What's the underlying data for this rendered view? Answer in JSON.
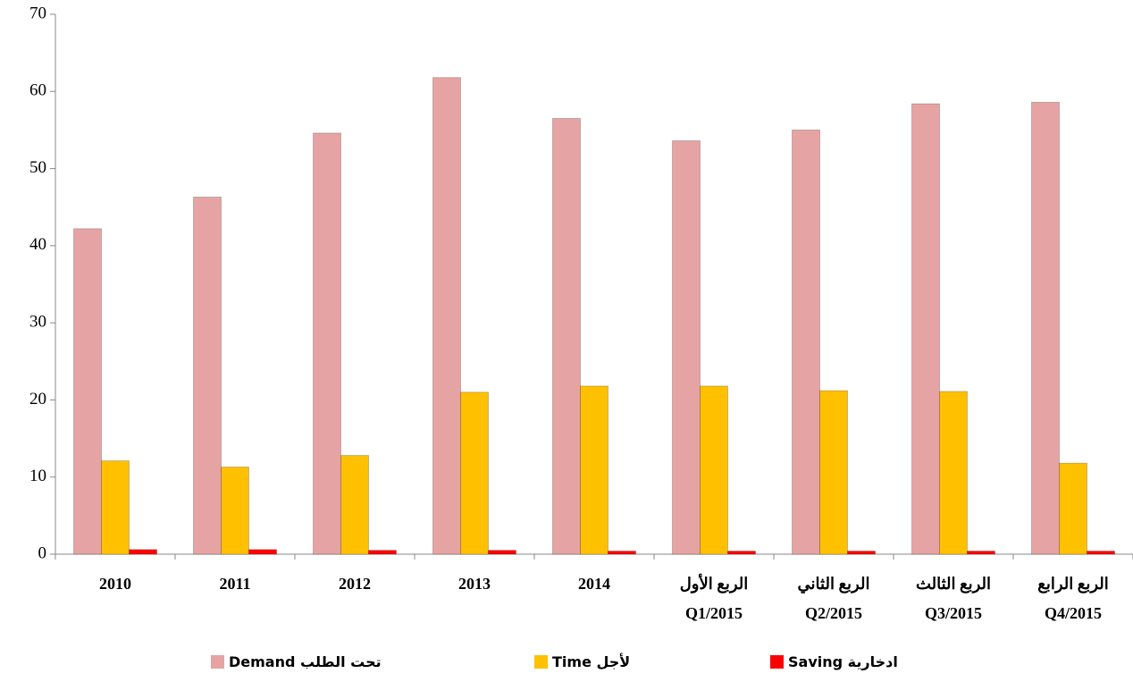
{
  "chart_data": {
    "type": "bar",
    "categories": [
      "2010",
      "2011",
      "2012",
      "2013",
      "2014",
      [
        "الربع الأول",
        "Q1/2015"
      ],
      [
        "الربع الثاني",
        "Q2/2015"
      ],
      [
        "الربع الثالث",
        "Q3/2015"
      ],
      [
        "الربع الرابع",
        "Q4/2015"
      ]
    ],
    "series": [
      {
        "name": "تحت الطلب  Demand",
        "color": "#e6a3a3",
        "values": [
          42.2,
          46.3,
          54.6,
          61.8,
          56.5,
          53.6,
          55.0,
          58.4,
          58.6
        ]
      },
      {
        "name": "لأجل  Time",
        "color": "#ffc000",
        "values": [
          12.1,
          11.3,
          12.8,
          21.0,
          21.8,
          21.8,
          21.2,
          21.1,
          11.8
        ]
      },
      {
        "name": "ادخارية Saving",
        "color": "#ff0000",
        "values": [
          0.6,
          0.6,
          0.5,
          0.5,
          0.4,
          0.4,
          0.4,
          0.4,
          0.4
        ]
      }
    ],
    "ylim": [
      0,
      70
    ],
    "yticks": [
      0,
      10,
      20,
      30,
      40,
      50,
      60,
      70
    ],
    "grid": false,
    "legend": "bottom"
  }
}
